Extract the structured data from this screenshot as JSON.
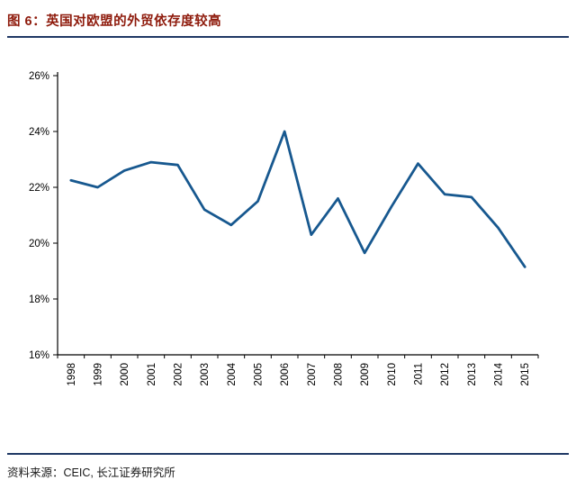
{
  "header": {
    "title": "图 6：英国对欧盟的外贸依存度较高"
  },
  "footer": {
    "source": "资料来源：CEIC, 长江证券研究所"
  },
  "colors": {
    "title_text": "#8e1a0b",
    "rule": "#1f3864",
    "line": "#17588f",
    "axis": "#000000",
    "tick_text": "#000000"
  },
  "chart_data": {
    "type": "line",
    "title": "英国对欧盟的外贸依存度较高",
    "xlabel": "",
    "ylabel": "",
    "categories": [
      "1998",
      "1999",
      "2000",
      "2001",
      "2002",
      "2003",
      "2004",
      "2005",
      "2006",
      "2007",
      "2008",
      "2009",
      "2010",
      "2011",
      "2012",
      "2013",
      "2014",
      "2015"
    ],
    "series": [
      {
        "name": "英国对欧盟外贸依存度",
        "values": [
          22.25,
          22.0,
          22.6,
          22.9,
          22.8,
          21.2,
          20.65,
          21.5,
          24.0,
          20.3,
          21.6,
          19.65,
          21.3,
          22.85,
          21.75,
          21.65,
          20.55,
          19.15
        ]
      }
    ],
    "ylim": [
      16,
      26
    ],
    "yticks": [
      16,
      18,
      20,
      22,
      24,
      26
    ],
    "ytick_labels": [
      "16%",
      "18%",
      "20%",
      "22%",
      "24%",
      "26%"
    ],
    "grid": false,
    "legend": false,
    "x_label_rotation": -90
  }
}
